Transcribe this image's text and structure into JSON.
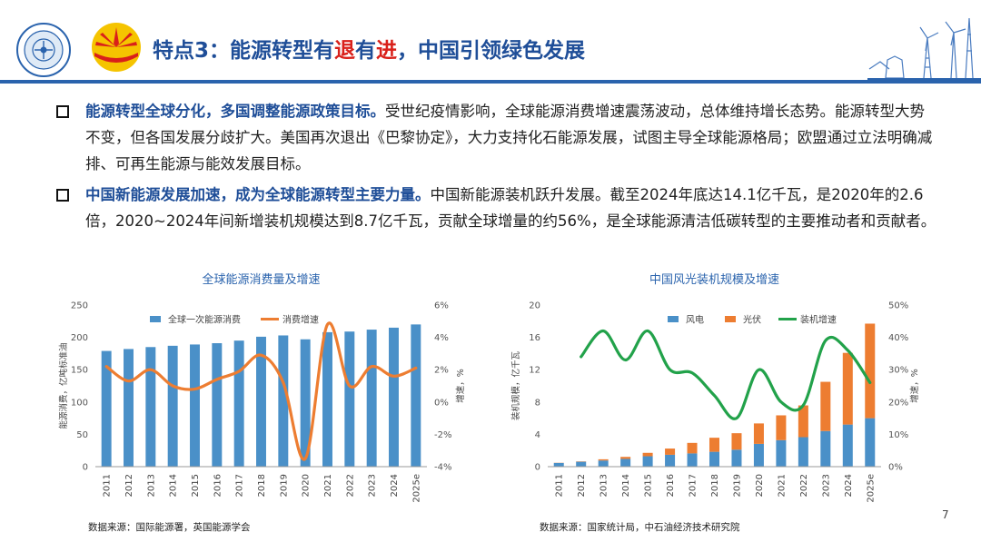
{
  "header": {
    "title_prefix": "特点3：能源转型有",
    "title_hl1": "退",
    "title_mid": "有",
    "title_hl2": "进",
    "title_suffix": "，中国引领绿色发展"
  },
  "bullets": [
    {
      "lead": "能源转型全球分化，多国调整能源政策目标。",
      "text": "受世纪疫情影响，全球能源消费增速震荡波动，总体维持增长态势。能源转型大势不变，但各国发展分歧扩大。美国再次退出《巴黎协定》，大力支持化石能源发展，试图主导全球能源格局；欧盟通过立法明确减排、可再生能源与能效发展目标。"
    },
    {
      "lead": "中国新能源发展加速，成为全球能源转型主要力量。",
      "text": "中国新能源装机跃升发展。截至2024年底达14.1亿千瓦，是2020年的2.6倍，2020~2024年间新增装机规模达到8.7亿千瓦，贡献全球增量的约56%，是全球能源清洁低碳转型的主要推动者和贡献者。"
    }
  ],
  "chart_data": [
    {
      "type": "bar",
      "title": "全球能源消费量及增速",
      "ylabel": "能源消费，亿吨标准油",
      "y2label": "增速，%",
      "ylim": [
        0,
        250
      ],
      "y2lim": [
        -4,
        6
      ],
      "yticks": [
        "0",
        "50",
        "100",
        "150",
        "200",
        "250"
      ],
      "y2ticks": [
        "-4%",
        "-2%",
        "0%",
        "2%",
        "4%",
        "6%"
      ],
      "categories": [
        "2011",
        "2012",
        "2013",
        "2014",
        "2015",
        "2016",
        "2017",
        "2018",
        "2019",
        "2020",
        "2021",
        "2022",
        "2023",
        "2024",
        "2025e"
      ],
      "series": [
        {
          "name": "全球一次能源消费",
          "kind": "bar",
          "color": "#4a90c8",
          "values": [
            179,
            182,
            185,
            187,
            189,
            191,
            195,
            201,
            203,
            197,
            208,
            209,
            212,
            215,
            220
          ]
        },
        {
          "name": "消费增速",
          "kind": "line",
          "axis": "right",
          "color": "#ed7d31",
          "values": [
            2.2,
            1.3,
            2.0,
            1.0,
            0.8,
            1.4,
            1.9,
            2.9,
            1.2,
            -3.5,
            4.8,
            1.0,
            2.2,
            1.6,
            2.1
          ]
        }
      ],
      "legend": "top"
    },
    {
      "type": "bar",
      "title": "中国风光装机规模及增速",
      "ylabel": "装机规模，亿千瓦",
      "y2label": "增速，%",
      "ylim": [
        0,
        20
      ],
      "y2lim": [
        0,
        50
      ],
      "yticks": [
        "0",
        "4",
        "8",
        "12",
        "16",
        "20"
      ],
      "y2ticks": [
        "0%",
        "10%",
        "20%",
        "30%",
        "40%",
        "50%"
      ],
      "categories": [
        "2011",
        "2012",
        "2013",
        "2014",
        "2015",
        "2016",
        "2017",
        "2018",
        "2019",
        "2020",
        "2021",
        "2022",
        "2023",
        "2024",
        "2025e"
      ],
      "series": [
        {
          "name": "风电",
          "kind": "bar",
          "stack": "s",
          "color": "#4a90c8",
          "values": [
            0.46,
            0.61,
            0.76,
            0.96,
            1.29,
            1.47,
            1.64,
            1.84,
            2.1,
            2.82,
            3.28,
            3.65,
            4.41,
            5.21,
            6.0
          ]
        },
        {
          "name": "光伏",
          "kind": "bar",
          "stack": "s",
          "color": "#ed7d31",
          "values": [
            0.02,
            0.04,
            0.15,
            0.25,
            0.42,
            0.77,
            1.3,
            1.74,
            2.04,
            2.53,
            3.07,
            3.93,
            6.09,
            8.87,
            11.7
          ]
        },
        {
          "name": "装机增速",
          "kind": "line",
          "axis": "right",
          "color": "#22a24a",
          "values": [
            null,
            34,
            42,
            33,
            42,
            30,
            29,
            22,
            15,
            30,
            20,
            19,
            39,
            36,
            26
          ]
        }
      ],
      "legend": "top"
    }
  ],
  "sources": {
    "left": "数据来源：国际能源署，英国能源学会",
    "right": "数据来源：国家统计局，中石油经济技术研究院"
  },
  "page_number": "7",
  "colors": {
    "brand_blue": "#1f4e98",
    "accent_red": "#d9201a",
    "header_bar": "#2a63ad"
  }
}
